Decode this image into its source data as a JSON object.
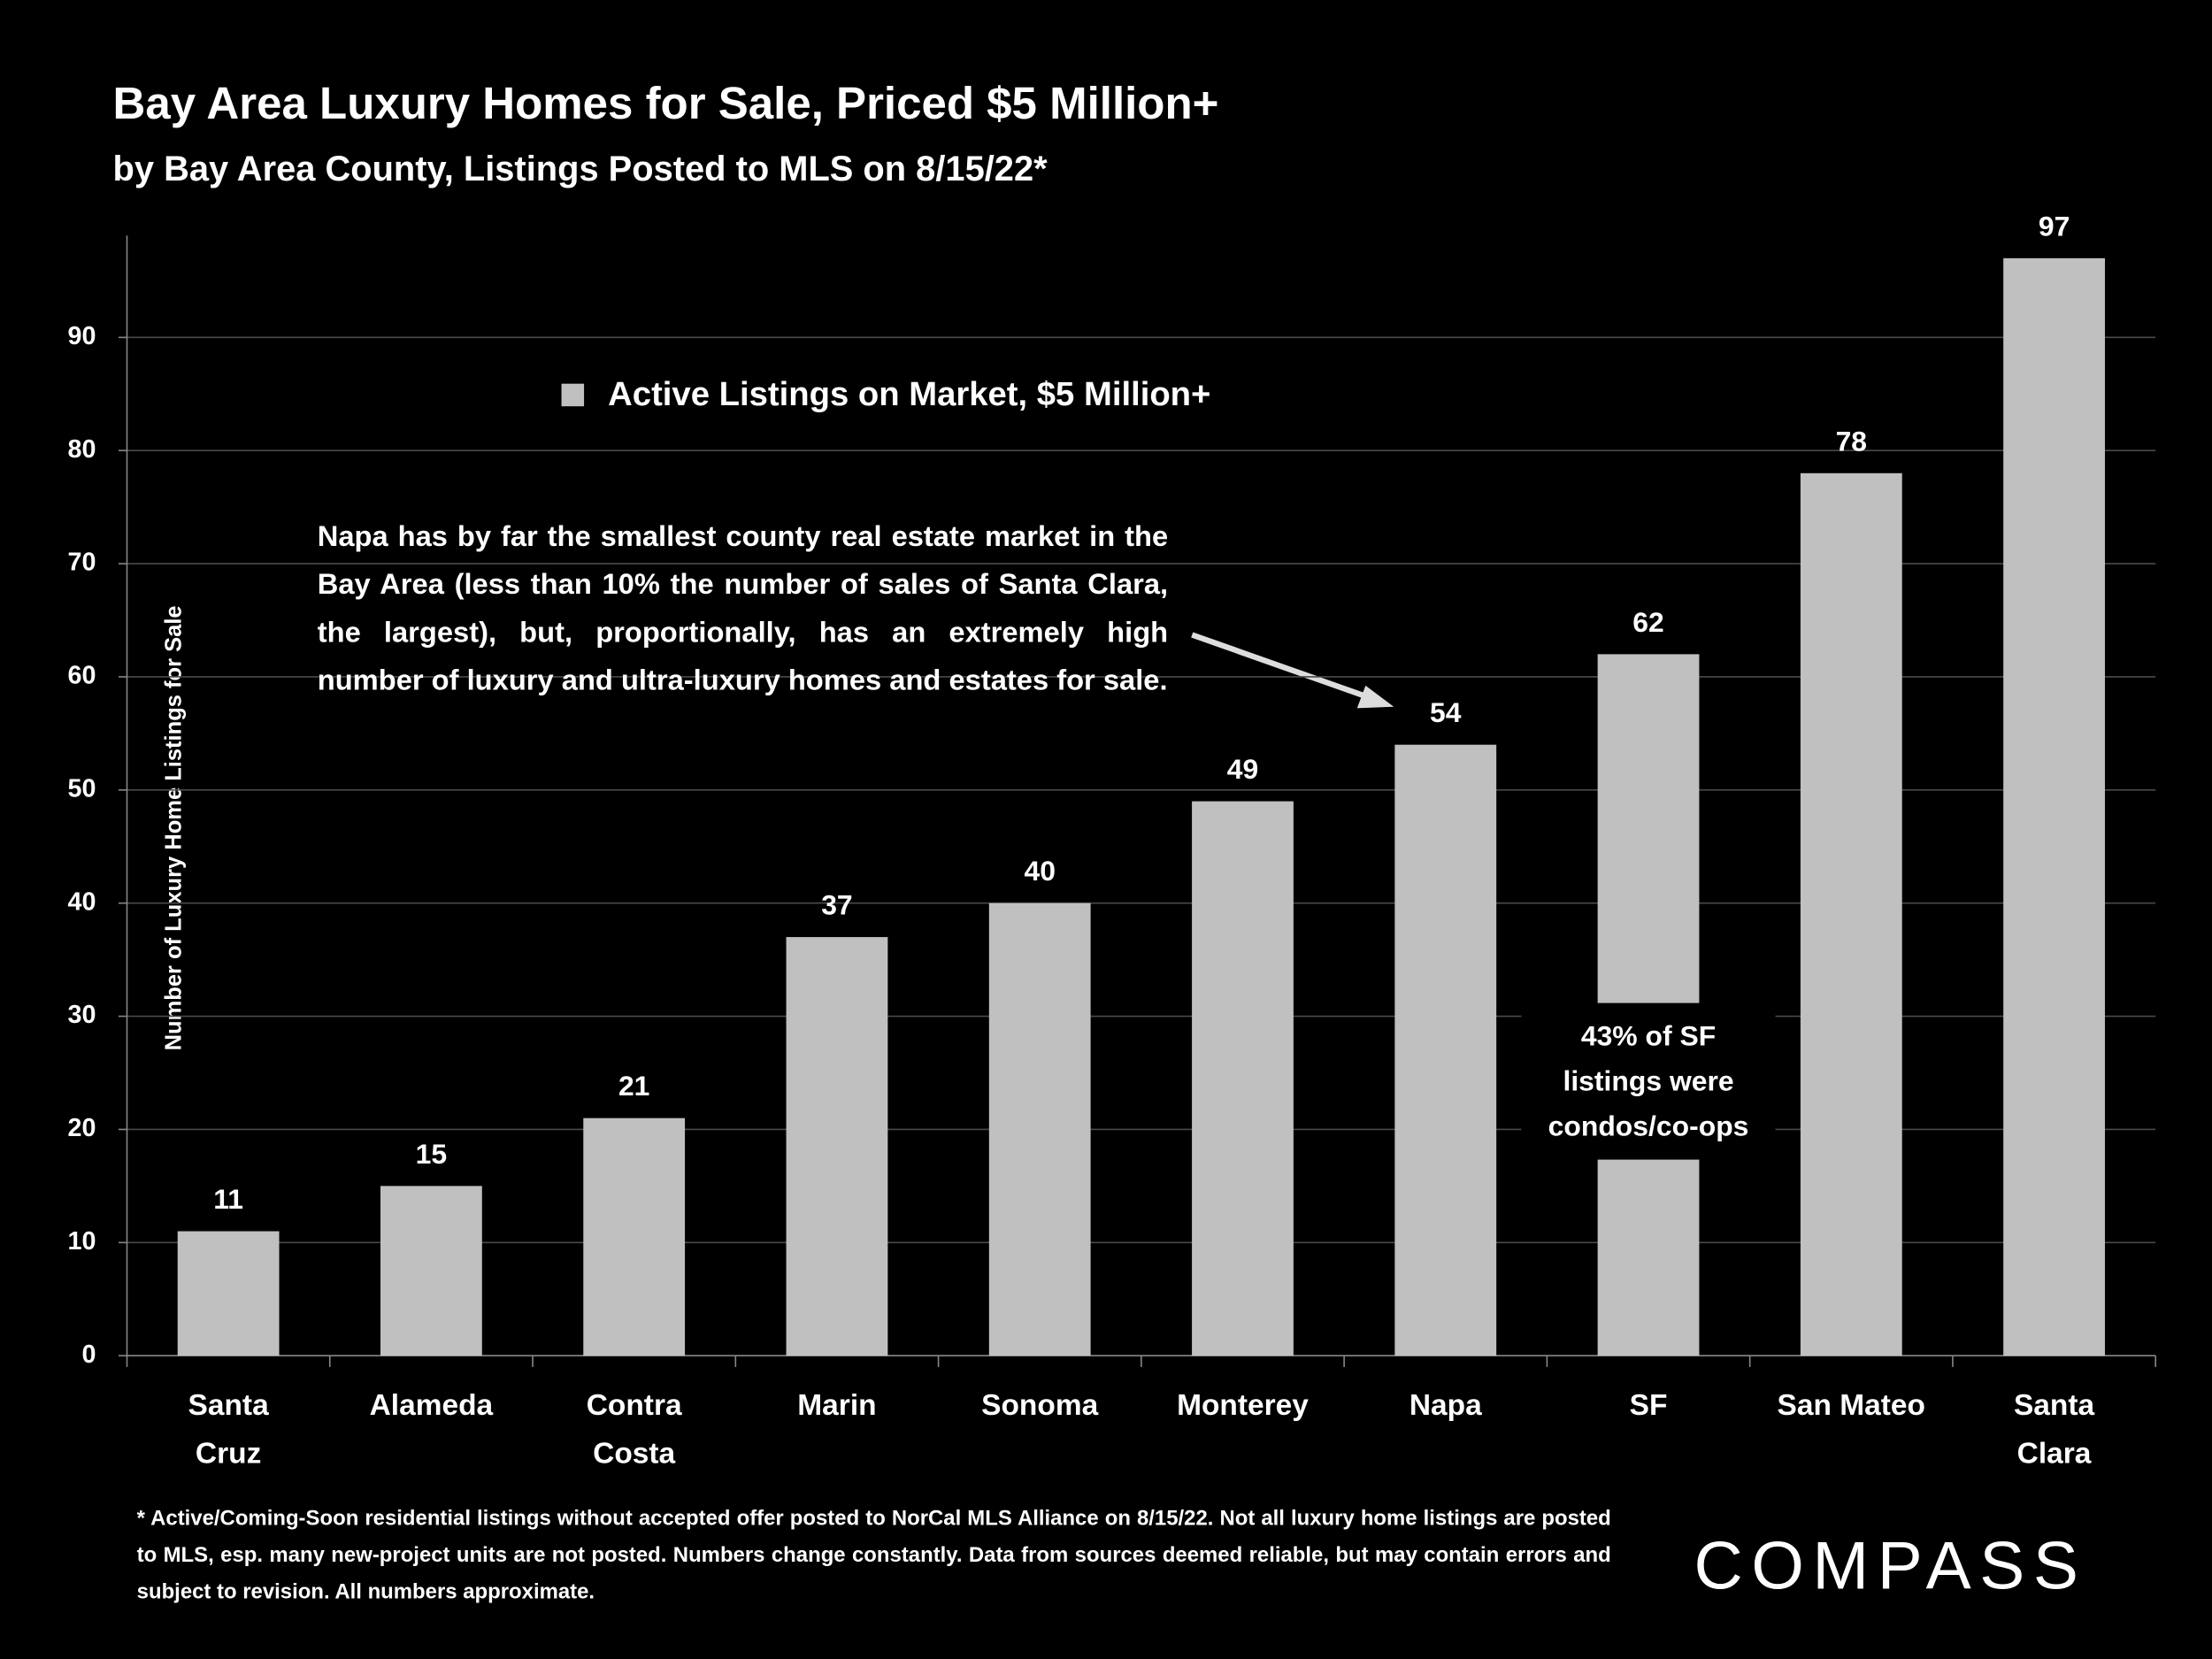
{
  "chart_data": {
    "type": "bar",
    "title": "Bay Area Luxury Homes for Sale, Priced $5 Million+",
    "subtitle": "by Bay Area County, Listings Posted to MLS on 8/15/22*",
    "y_label": "Number of Luxury Home Listings for Sale",
    "legend_label": "Active Listings on Market, $5 Million+",
    "color": "#c0c0c0",
    "categories": [
      "Santa\nCruz",
      "Alameda",
      "Contra\nCosta",
      "Marin",
      "Sonoma",
      "Monterey",
      "Napa",
      "SF",
      "San Mateo",
      "Santa\nClara"
    ],
    "values": [
      11,
      15,
      21,
      37,
      40,
      49,
      54,
      62,
      78,
      97
    ],
    "ylim": [
      0,
      99
    ],
    "yticks": [
      0,
      10,
      20,
      30,
      40,
      50,
      60,
      70,
      80,
      90
    ],
    "grid": true,
    "annotations": [
      "Napa has by far the smallest county real estate market in the Bay Area (less than 10% the number of sales of Santa Clara, the largest), but, proportionally, has an extremely high number of luxury and ultra-luxury homes and estates for sale.",
      "43% of SF\nlistings were\ncondos/co-ops"
    ],
    "footnote": "* Active/Coming-Soon residential listings without accepted offer posted to NorCal MLS Alliance on 8/15/22. Not all luxury home listings are posted to MLS, esp. many new-project units are not posted. Numbers change constantly. Data from sources deemed reliable, but may contain errors and subject to revision. All numbers approximate.",
    "logo": "COMPASS"
  }
}
